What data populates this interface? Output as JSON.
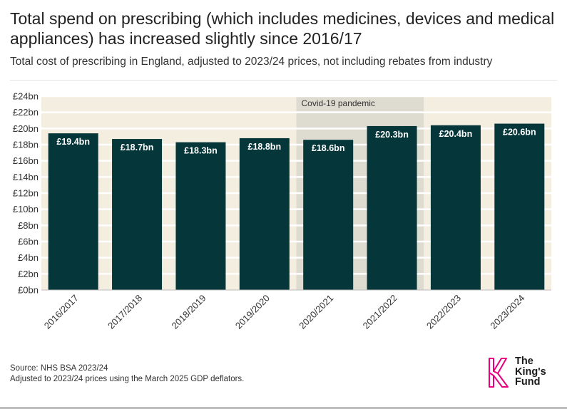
{
  "header": {
    "title": "Total spend on prescribing (which includes medicines, devices and medical appliances) has increased slightly since 2016/17",
    "subtitle": "Total cost of prescribing in England, adjusted to 2023/24 prices, not including rebates from industry"
  },
  "chart_data": {
    "type": "bar",
    "title": "Total spend on prescribing (which includes medicines, devices and medical appliances) has increased slightly since 2016/17",
    "subtitle": "Total cost of prescribing in England, adjusted to 2023/24 prices, not including rebates from industry",
    "xlabel": "",
    "ylabel": "",
    "categories": [
      "2016/2017",
      "2017/2018",
      "2018/2019",
      "2019/2020",
      "2020/2021",
      "2021/2022",
      "2022/2023",
      "2023/2024"
    ],
    "values": [
      19.4,
      18.7,
      18.3,
      18.8,
      18.6,
      20.3,
      20.4,
      20.6
    ],
    "data_labels": [
      "£19.4bn",
      "£18.7bn",
      "£18.3bn",
      "£18.8bn",
      "£18.6bn",
      "£20.3bn",
      "£20.4bn",
      "£20.6bn"
    ],
    "ylim": [
      0,
      24
    ],
    "y_ticks": [
      0,
      2,
      4,
      6,
      8,
      10,
      12,
      14,
      16,
      18,
      20,
      22,
      24
    ],
    "y_tick_labels": [
      "£0bn",
      "£2bn",
      "£4bn",
      "£6bn",
      "£8bn",
      "£10bn",
      "£12bn",
      "£14bn",
      "£16bn",
      "£18bn",
      "£20bn",
      "£22bn",
      "£24bn"
    ],
    "grid": true,
    "annotation": {
      "text": "Covid-19 pandemic",
      "from_category": "2020/2021",
      "to_category": "2021/2022"
    },
    "colors": {
      "bar": "#04363a",
      "plot_background": "#f4eee1",
      "gridline": "#ffffff",
      "annotation_band": "#dedbd1",
      "bar_label": "#ffffff"
    }
  },
  "footer": {
    "source": "Source: NHS BSA 2023/24",
    "note": "Adjusted to 2023/24 prices using the March 2025 GDP deflators."
  },
  "logo": {
    "line1": "The",
    "line2": "King's",
    "line3": "Fund",
    "accent_color": "#e6007e",
    "icon": "kings-fund-k-icon"
  }
}
